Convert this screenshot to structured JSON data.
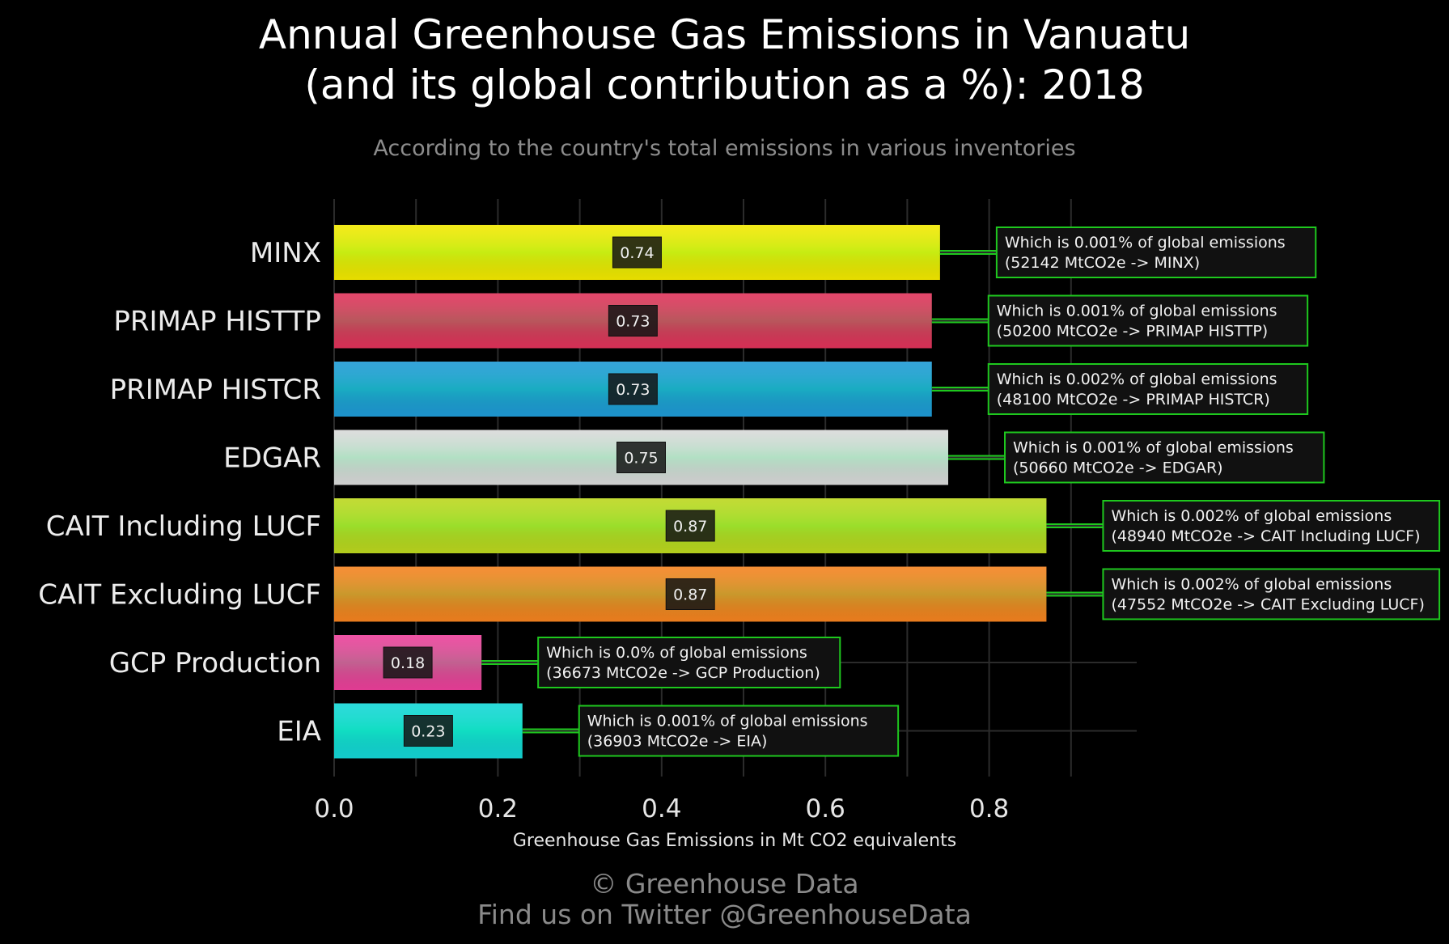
{
  "header": {
    "title_line1": "Annual Greenhouse Gas Emissions in Vanuatu",
    "title_line2": "(and its global contribution as a %): 2018",
    "subtitle": "According to the country's total emissions in various inventories"
  },
  "footer": {
    "copyright": "© Greenhouse Data",
    "twitter": "Find us on Twitter @GreenhouseData"
  },
  "chart_data": {
    "type": "bar",
    "orientation": "horizontal",
    "title": "Annual Greenhouse Gas Emissions in Vanuatu (and its global contribution as a %): 2018",
    "subtitle": "According to the country's total emissions in various inventories",
    "xlabel": "Greenhouse Gas Emissions in Mt CO2 equivalents",
    "ylabel": "",
    "xlim": [
      0,
      0.98
    ],
    "xticks": [
      "0.0",
      "0.2",
      "0.4",
      "0.6",
      "0.8"
    ],
    "xtick_values": [
      0,
      0.2,
      0.4,
      0.6,
      0.8
    ],
    "grid": true,
    "categories": [
      "MINX",
      "PRIMAP HISTTP",
      "PRIMAP HISTCR",
      "EDGAR",
      "CAIT Including LUCF",
      "CAIT Excluding LUCF",
      "GCP Production",
      "EIA"
    ],
    "values": [
      0.74,
      0.73,
      0.73,
      0.75,
      0.87,
      0.87,
      0.18,
      0.23
    ],
    "value_labels": [
      "0.74",
      "0.73",
      "0.73",
      "0.75",
      "0.87",
      "0.87",
      "0.18",
      "0.23"
    ],
    "colors": [
      "#f2e800",
      "#e0325a",
      "#1f9ad6",
      "#d9d9d9",
      "#bcd71e",
      "#f5821f",
      "#ec3f9a",
      "#14d6d6"
    ],
    "annotations": [
      {
        "line1": "Which is 0.001% of global emissions",
        "line2": "(52142 MtCO2e -> MINX)"
      },
      {
        "line1": "Which is 0.001% of global emissions",
        "line2": "(50200 MtCO2e -> PRIMAP HISTTP)"
      },
      {
        "line1": "Which is 0.002% of global emissions",
        "line2": "(48100 MtCO2e -> PRIMAP HISTCR)"
      },
      {
        "line1": "Which is 0.001% of global emissions",
        "line2": "(50660 MtCO2e -> EDGAR)"
      },
      {
        "line1": "Which is 0.002% of global emissions",
        "line2": "(48940 MtCO2e -> CAIT Including LUCF)"
      },
      {
        "line1": "Which is 0.002% of global emissions",
        "line2": "(47552 MtCO2e -> CAIT Excluding LUCF)"
      },
      {
        "line1": "Which is 0.0% of global emissions",
        "line2": "(36673 MtCO2e -> GCP Production)"
      },
      {
        "line1": "Which is 0.001% of global emissions",
        "line2": "(36903 MtCO2e -> EIA)"
      }
    ],
    "annotation_border_color": "#1ec81e",
    "grid_color": "#2b2b2b",
    "background": "#000000"
  }
}
